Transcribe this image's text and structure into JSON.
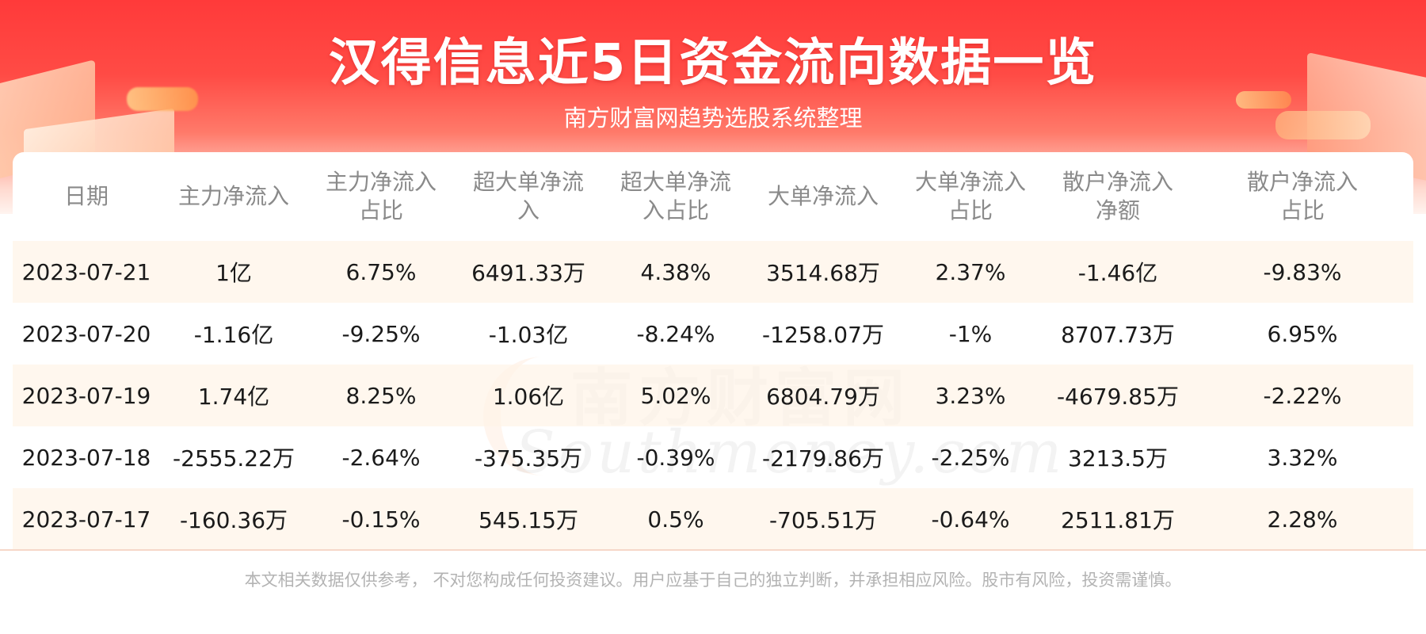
{
  "header": {
    "title": "汉得信息近5日资金流向数据一览",
    "subtitle": "南方财富网趋势选股系统整理"
  },
  "watermark": {
    "cn": "南方财富网",
    "en": "Southmoney.com"
  },
  "chart_data": {
    "type": "table",
    "columns": [
      "日期",
      "主力净流入",
      "主力净流入\n占比",
      "超大单净流\n入",
      "超大单净流\n入占比",
      "大单净流入",
      "大单净流入\n占比",
      "散户净流入\n净额",
      "散户净流入\n占比"
    ],
    "rows": [
      [
        "2023-07-21",
        "1亿",
        "6.75%",
        "6491.33万",
        "4.38%",
        "3514.68万",
        "2.37%",
        "-1.46亿",
        "-9.83%"
      ],
      [
        "2023-07-20",
        "-1.16亿",
        "-9.25%",
        "-1.03亿",
        "-8.24%",
        "-1258.07万",
        "-1%",
        "8707.73万",
        "6.95%"
      ],
      [
        "2023-07-19",
        "1.74亿",
        "8.25%",
        "1.06亿",
        "5.02%",
        "6804.79万",
        "3.23%",
        "-4679.85万",
        "-2.22%"
      ],
      [
        "2023-07-18",
        "-2555.22万",
        "-2.64%",
        "-375.35万",
        "-0.39%",
        "-2179.86万",
        "-2.25%",
        "3213.5万",
        "3.32%"
      ],
      [
        "2023-07-17",
        "-160.36万",
        "-0.15%",
        "545.15万",
        "0.5%",
        "-705.51万",
        "-0.64%",
        "2511.81万",
        "2.28%"
      ]
    ]
  },
  "footer": {
    "disclaimer": "本文相关数据仅供参考， 不对您构成任何投资建议。用户应基于自己的独立判断，并承担相应风险。股市有风险，投资需谨慎。"
  }
}
